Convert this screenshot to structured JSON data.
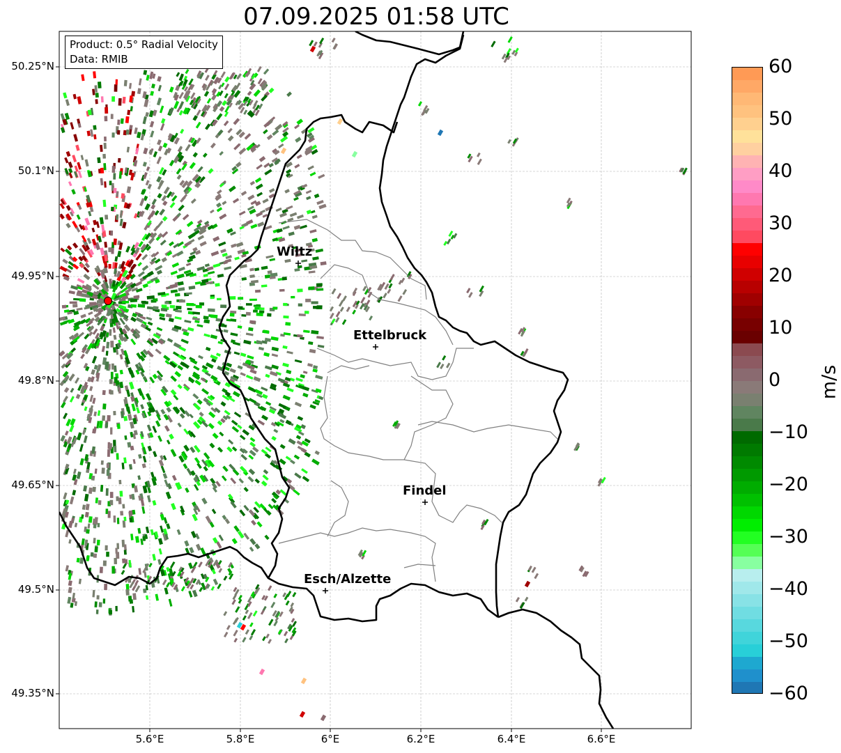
{
  "title": "07.09.2025 01:58 UTC",
  "info": {
    "product": "Product: 0.5° Radial Velocity",
    "data_source": "Data: RMIB"
  },
  "axes": {
    "lat_ticks": [
      "50.25°N",
      "50.1°N",
      "49.95°N",
      "49.8°N",
      "49.65°N",
      "49.5°N",
      "49.35°N"
    ],
    "lon_ticks": [
      "5.6°E",
      "5.8°E",
      "6°E",
      "6.2°E",
      "6.4°E",
      "6.6°E"
    ]
  },
  "cities": [
    {
      "name": "Wiltz"
    },
    {
      "name": "Ettelbruck"
    },
    {
      "name": "Findel"
    },
    {
      "name": "Esch/Alzette"
    }
  ],
  "colorbar": {
    "label": "m/s",
    "ticks": [
      "60",
      "50",
      "40",
      "30",
      "20",
      "10",
      "0",
      "−10",
      "−20",
      "−30",
      "−40",
      "−50",
      "−60"
    ],
    "colors_top_to_bottom": [
      "#ff9a55",
      "#ffa866",
      "#ffb875",
      "#ffc27f",
      "#ffd08f",
      "#ffe19a",
      "#ffd0a0",
      "#ffb3b3",
      "#ff9ec4",
      "#ff8ac8",
      "#ff78b0",
      "#ff6a90",
      "#ff5a78",
      "#ff4a60",
      "#ff0000",
      "#e80000",
      "#d00000",
      "#b80000",
      "#a00000",
      "#880000",
      "#780000",
      "#6a0000",
      "#8b4a50",
      "#8d5a62",
      "#8a6a70",
      "#8a7a78",
      "#7a8070",
      "#608560",
      "#4a7a4a",
      "#006a00",
      "#007a00",
      "#008a00",
      "#009a00",
      "#00ac00",
      "#00c000",
      "#00d800",
      "#00ee00",
      "#22ff22",
      "#55ff55",
      "#88ffa0",
      "#b8eeee",
      "#a0e8ea",
      "#88e2e6",
      "#70dde2",
      "#58d8de",
      "#40d4da",
      "#28cfd8",
      "#1ea8d0",
      "#1f90cc",
      "#1f77b4"
    ]
  }
}
